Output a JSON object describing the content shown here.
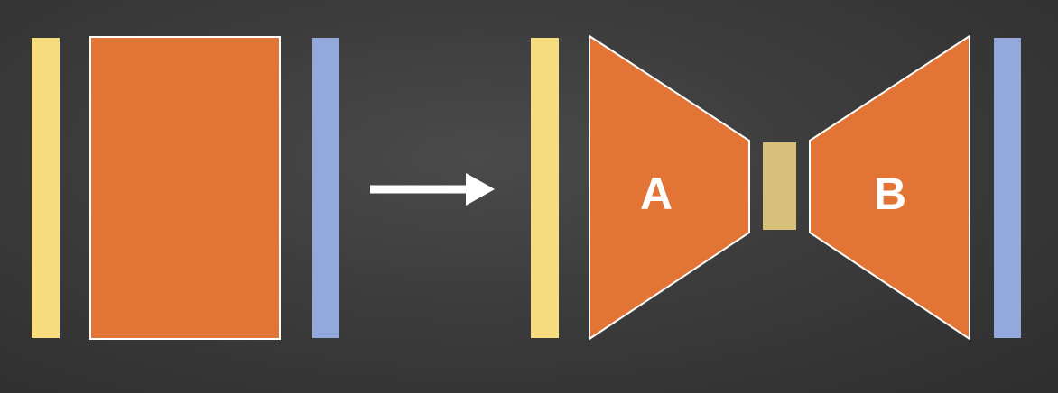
{
  "labels": {
    "encoder": "A",
    "decoder": "B"
  },
  "colors": {
    "input_layer": "#f7dd80",
    "output_layer": "#93a9dc",
    "network_block": "#e27536",
    "bottleneck": "#d9c07b",
    "outline": "#ffffff",
    "arrow": "#ffffff"
  }
}
